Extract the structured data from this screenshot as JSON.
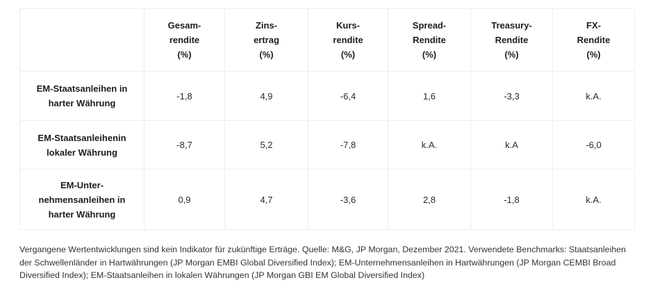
{
  "colors": {
    "border": "#ededed",
    "heading_text": "#1d1d1f",
    "value_text": "#2a2a2a",
    "footnote_text": "#333333",
    "background": "#ffffff"
  },
  "table": {
    "headers": [
      {
        "lines": [
          "Gesam-",
          "rendite",
          "(%)"
        ]
      },
      {
        "lines": [
          "Zins-",
          "ertrag",
          "(%)"
        ]
      },
      {
        "lines": [
          "Kurs-",
          "rendite",
          "(%)"
        ]
      },
      {
        "lines": [
          "Spread-",
          "Rendite",
          "(%)"
        ]
      },
      {
        "lines": [
          "Treasury-",
          "Rendite",
          "(%)"
        ]
      },
      {
        "lines": [
          "FX-",
          "Rendite",
          "(%)"
        ]
      }
    ],
    "rows": [
      {
        "label_lines": [
          "EM-Staatsanleihen in",
          "harter Währung"
        ],
        "values": [
          "-1,8",
          "4,9",
          "-6,4",
          "1,6",
          "-3,3",
          "k.A."
        ]
      },
      {
        "label_lines": [
          "EM-Staatsanleihenin",
          "lokaler Währung"
        ],
        "values": [
          "-8,7",
          "5,2",
          "-7,8",
          "k.A.",
          "k.A",
          "-6,0"
        ]
      },
      {
        "label_lines": [
          "EM-Unter-",
          "nehmensanleihen in",
          "harter Währung"
        ],
        "values": [
          "0,9",
          "4,7",
          "-3,6",
          "2,8",
          "-1,8",
          "k.A."
        ]
      }
    ]
  },
  "footnote": "Vergangene Wertentwicklungen sind kein Indikator für zukünftige Erträge. Quelle: M&G, JP Morgan, Dezember 2021. Verwendete Benchmarks: Staatsanleihen der Schwellenländer in Hartwährungen (JP Morgan EMBI Global Diversified Index); EM-Unternehmensanleihen in Hartwährungen (JP Morgan CEMBI Broad Diversified Index); EM-Staatsanleihen in lokalen Währungen (JP Morgan GBI EM Global Diversified Index)",
  "chart_data": {
    "type": "table",
    "title": "",
    "columns": [
      "",
      "Gesam-rendite (%)",
      "Zins-ertrag (%)",
      "Kurs-rendite (%)",
      "Spread-Rendite (%)",
      "Treasury-Rendite (%)",
      "FX-Rendite (%)"
    ],
    "rows": [
      {
        "label": "EM-Staatsanleihen in harter Währung",
        "values": [
          "-1,8",
          "4,9",
          "-6,4",
          "1,6",
          "-3,3",
          "k.A."
        ]
      },
      {
        "label": "EM-Staatsanleihenin lokaler Währung",
        "values": [
          "-8,7",
          "5,2",
          "-7,8",
          "k.A.",
          "k.A",
          "-6,0"
        ]
      },
      {
        "label": "EM-Unter-nehmensanleihen in harter Währung",
        "values": [
          "0,9",
          "4,7",
          "-3,6",
          "2,8",
          "-1,8",
          "k.A."
        ]
      }
    ],
    "source_note": "Quelle: M&G, JP Morgan, Dezember 2021"
  }
}
